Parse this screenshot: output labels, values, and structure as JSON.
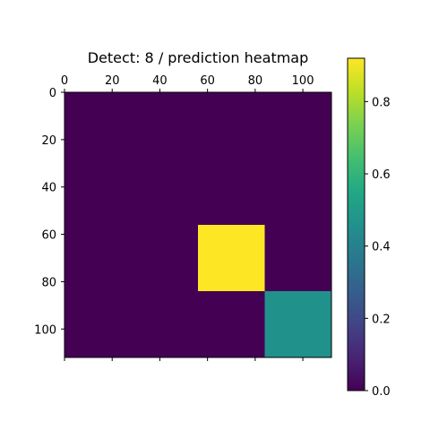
{
  "chart_data": {
    "type": "heatmap",
    "title": "Detect: 8 / prediction heatmap",
    "grid": false,
    "x_range": [
      0,
      112
    ],
    "y_range": [
      0,
      112
    ],
    "y_inverted": true,
    "x_axis_position": "top",
    "x_ticks": [
      0,
      20,
      40,
      60,
      80,
      100
    ],
    "y_ticks": [
      0,
      20,
      40,
      60,
      80,
      100
    ],
    "x_tick_labels": [
      "0",
      "20",
      "40",
      "60",
      "80",
      "100"
    ],
    "y_tick_labels": [
      "0",
      "20",
      "40",
      "60",
      "80",
      "100"
    ],
    "cell_size": 28,
    "values": [
      [
        0,
        0,
        0,
        0
      ],
      [
        0,
        0,
        0,
        0
      ],
      [
        0,
        0,
        0.92,
        0
      ],
      [
        0,
        0,
        0,
        0.46
      ]
    ],
    "colormap": "viridis",
    "vmin": 0,
    "vmax": 0.92,
    "colorbar": {
      "ticks": [
        0.0,
        0.2,
        0.4,
        0.6,
        0.8
      ],
      "tick_labels": [
        "0.0",
        "0.2",
        "0.4",
        "0.6",
        "0.8"
      ]
    }
  }
}
